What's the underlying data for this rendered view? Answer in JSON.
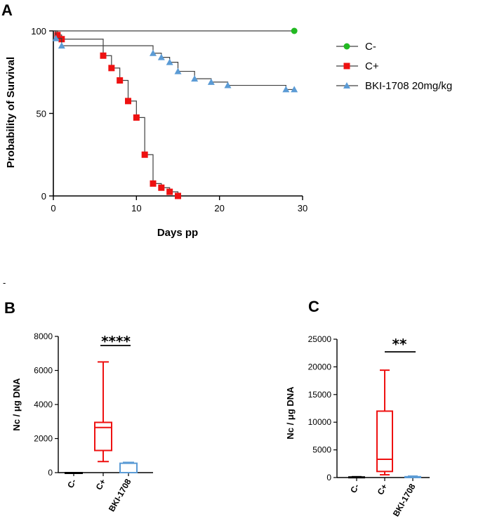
{
  "chart_data": [
    {
      "panel": "A",
      "type": "line",
      "subtype": "kaplan-meier",
      "xlabel": "Days pp",
      "ylabel": "Probability of Survival",
      "xlim": [
        0,
        30
      ],
      "ylim": [
        0,
        100
      ],
      "xticks": [
        0,
        10,
        20,
        30
      ],
      "yticks": [
        0,
        50,
        100
      ],
      "legend_position": "right",
      "series": [
        {
          "name": "C-",
          "color": "#22b922",
          "marker": "circle",
          "steps": [
            [
              0,
              100
            ],
            [
              29,
              100
            ]
          ],
          "points": [
            [
              29,
              100
            ]
          ]
        },
        {
          "name": "C+",
          "color": "#ee1111",
          "marker": "square",
          "steps": [
            [
              0,
              100
            ],
            [
              0.5,
              97.5
            ],
            [
              1,
              95
            ],
            [
              6,
              85
            ],
            [
              7,
              77.5
            ],
            [
              8,
              70
            ],
            [
              9,
              57.5
            ],
            [
              10,
              47.5
            ],
            [
              11,
              25
            ],
            [
              12,
              7.5
            ],
            [
              13,
              5
            ],
            [
              14,
              2.5
            ],
            [
              15,
              0
            ]
          ],
          "points": [
            [
              0.5,
              97.5
            ],
            [
              1,
              95
            ],
            [
              6,
              85
            ],
            [
              7,
              77.5
            ],
            [
              8,
              70
            ],
            [
              9,
              57.5
            ],
            [
              10,
              47.5
            ],
            [
              11,
              25
            ],
            [
              12,
              7.5
            ],
            [
              13,
              5
            ],
            [
              14,
              2.5
            ],
            [
              15,
              0
            ]
          ]
        },
        {
          "name": "BKI-1708 20mg/kg",
          "color": "#5b9bd5",
          "marker": "triangle",
          "steps": [
            [
              0,
              100
            ],
            [
              0.3,
              95.5
            ],
            [
              1,
              91
            ],
            [
              12,
              86.5
            ],
            [
              13,
              84
            ],
            [
              14,
              81
            ],
            [
              15,
              75.5
            ],
            [
              17,
              71
            ],
            [
              19,
              69
            ],
            [
              21,
              67
            ],
            [
              28,
              64.5
            ],
            [
              29,
              64.5
            ]
          ],
          "points": [
            [
              0.3,
              95.5
            ],
            [
              1,
              91
            ],
            [
              12,
              86.5
            ],
            [
              13,
              84
            ],
            [
              14,
              81
            ],
            [
              15,
              75.5
            ],
            [
              17,
              71
            ],
            [
              19,
              69
            ],
            [
              21,
              67
            ],
            [
              28,
              64.5
            ],
            [
              29,
              64.5
            ]
          ]
        }
      ]
    },
    {
      "panel": "B",
      "type": "box",
      "ylabel": "Nc / μg DNA",
      "ylim": [
        0,
        8000
      ],
      "yticks": [
        0,
        2000,
        4000,
        6000,
        8000
      ],
      "categories": [
        "C-",
        "C+",
        "BKI-1708"
      ],
      "significance": {
        "label": "****",
        "between": [
          "C+",
          "BKI-1708"
        ]
      },
      "boxes": [
        {
          "name": "C-",
          "color": "#000000",
          "min": 0,
          "q1": 0,
          "median": 0,
          "q3": 0,
          "max": 0
        },
        {
          "name": "C+",
          "color": "#ee1111",
          "min": 650,
          "q1": 1300,
          "median": 2650,
          "q3": 2950,
          "max": 6500
        },
        {
          "name": "BKI-1708",
          "color": "#5b9bd5",
          "min": 0,
          "q1": 0,
          "median": 0,
          "q3": 550,
          "max": 600
        }
      ]
    },
    {
      "panel": "C",
      "type": "box",
      "ylabel": "Nc / μg DNA",
      "ylim": [
        0,
        25000
      ],
      "yticks": [
        0,
        5000,
        10000,
        15000,
        20000,
        25000
      ],
      "categories": [
        "C-",
        "C+",
        "BKI-1708"
      ],
      "significance": {
        "label": "**",
        "between": [
          "C+",
          "BKI-1708"
        ]
      },
      "boxes": [
        {
          "name": "C-",
          "color": "#000000",
          "min": 0,
          "q1": 0,
          "median": 0,
          "q3": 100,
          "max": 150
        },
        {
          "name": "C+",
          "color": "#ee1111",
          "min": 500,
          "q1": 1100,
          "median": 3300,
          "q3": 12000,
          "max": 19400
        },
        {
          "name": "BKI-1708",
          "color": "#5b9bd5",
          "min": 0,
          "q1": 0,
          "median": 50,
          "q3": 150,
          "max": 250
        }
      ]
    }
  ],
  "stray_mark": "-"
}
